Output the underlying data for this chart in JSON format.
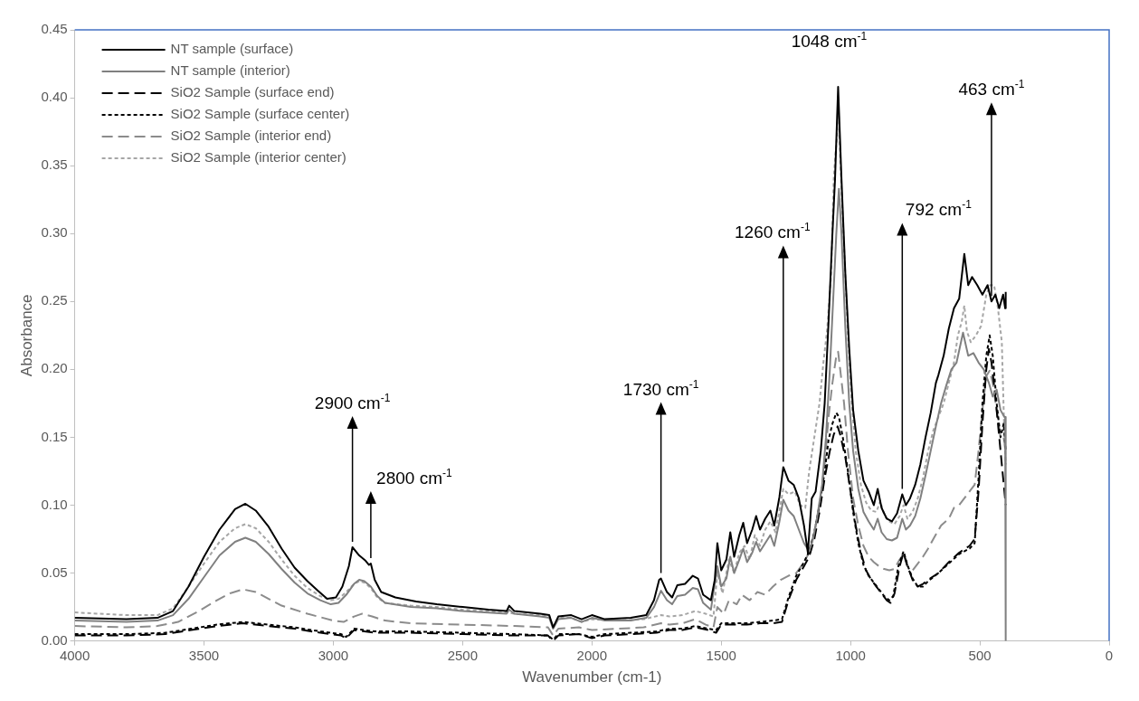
{
  "chart_data": {
    "type": "line",
    "xlabel": "Wavenumber (cm-1)",
    "ylabel": "Absorbance",
    "xlim": [
      4000,
      0
    ],
    "xticks": [
      4000,
      3500,
      3000,
      2500,
      2000,
      1500,
      1000,
      500,
      0
    ],
    "ylim": [
      0,
      0.45
    ],
    "yticks": [
      {
        "value": 0,
        "label": "0.00"
      },
      {
        "value": 0.05,
        "label": "0.05"
      },
      {
        "value": 0.1,
        "label": "0.10"
      },
      {
        "value": 0.15,
        "label": "0.15"
      },
      {
        "value": 0.2,
        "label": "0.20"
      },
      {
        "value": 0.25,
        "label": "0.25"
      },
      {
        "value": 0.3,
        "label": "0.30"
      },
      {
        "value": 0.35,
        "label": "0.35"
      },
      {
        "value": 0.4,
        "label": "0.40"
      },
      {
        "value": 0.45,
        "label": "0.45"
      }
    ],
    "grid": false,
    "legend": "top left",
    "marker": "none",
    "series": [
      {
        "name": "NT sample (surface)",
        "color": "#000000",
        "line_style": "solid",
        "x": [
          4000,
          3800,
          3680,
          3620,
          3560,
          3500,
          3440,
          3380,
          3340,
          3300,
          3250,
          3200,
          3150,
          3100,
          3060,
          3024,
          2990,
          2965,
          2940,
          2926,
          2900,
          2875,
          2862,
          2855,
          2840,
          2815,
          2760,
          2680,
          2600,
          2500,
          2400,
          2330,
          2320,
          2300,
          2200,
          2165,
          2150,
          2130,
          2080,
          2040,
          2000,
          1950,
          1850,
          1790,
          1760,
          1740,
          1733,
          1710,
          1690,
          1670,
          1640,
          1610,
          1590,
          1570,
          1540,
          1525,
          1515,
          1500,
          1480,
          1465,
          1450,
          1430,
          1415,
          1400,
          1380,
          1365,
          1350,
          1330,
          1310,
          1295,
          1275,
          1260,
          1240,
          1220,
          1200,
          1180,
          1165,
          1150,
          1135,
          1115,
          1100,
          1085,
          1070,
          1060,
          1048,
          1035,
          1020,
          1005,
          990,
          970,
          950,
          930,
          910,
          895,
          880,
          860,
          840,
          820,
          800,
          786,
          770,
          750,
          730,
          710,
          690,
          670,
          660,
          640,
          620,
          600,
          580,
          560,
          545,
          530,
          510,
          490,
          470,
          455,
          440,
          425,
          410,
          402,
          400
        ],
        "values": [
          0.017,
          0.016,
          0.017,
          0.022,
          0.04,
          0.062,
          0.082,
          0.097,
          0.101,
          0.096,
          0.084,
          0.068,
          0.054,
          0.044,
          0.037,
          0.031,
          0.032,
          0.04,
          0.055,
          0.069,
          0.063,
          0.059,
          0.056,
          0.057,
          0.045,
          0.036,
          0.032,
          0.029,
          0.027,
          0.025,
          0.023,
          0.022,
          0.026,
          0.022,
          0.02,
          0.019,
          0.01,
          0.018,
          0.019,
          0.016,
          0.019,
          0.016,
          0.017,
          0.019,
          0.03,
          0.045,
          0.046,
          0.036,
          0.032,
          0.041,
          0.042,
          0.048,
          0.046,
          0.034,
          0.03,
          0.045,
          0.072,
          0.052,
          0.06,
          0.08,
          0.062,
          0.078,
          0.087,
          0.072,
          0.082,
          0.092,
          0.082,
          0.09,
          0.096,
          0.085,
          0.106,
          0.128,
          0.118,
          0.115,
          0.105,
          0.085,
          0.065,
          0.105,
          0.11,
          0.14,
          0.175,
          0.235,
          0.3,
          0.34,
          0.408,
          0.34,
          0.27,
          0.215,
          0.17,
          0.14,
          0.118,
          0.11,
          0.1,
          0.112,
          0.098,
          0.09,
          0.088,
          0.094,
          0.108,
          0.1,
          0.105,
          0.115,
          0.13,
          0.15,
          0.168,
          0.19,
          0.196,
          0.21,
          0.23,
          0.245,
          0.252,
          0.285,
          0.262,
          0.268,
          0.262,
          0.255,
          0.262,
          0.25,
          0.255,
          0.245,
          0.255,
          0.245,
          0.257
        ]
      },
      {
        "name": "NT sample (interior)",
        "color": "#808080",
        "line_style": "solid",
        "x": [
          4000,
          3800,
          3680,
          3620,
          3560,
          3500,
          3440,
          3380,
          3340,
          3300,
          3250,
          3200,
          3150,
          3100,
          3050,
          3010,
          2980,
          2950,
          2920,
          2900,
          2880,
          2855,
          2830,
          2800,
          2700,
          2600,
          2500,
          2330,
          2320,
          2300,
          2200,
          2165,
          2150,
          2130,
          2080,
          2040,
          2000,
          1950,
          1850,
          1790,
          1760,
          1733,
          1710,
          1690,
          1670,
          1640,
          1610,
          1590,
          1570,
          1540,
          1515,
          1500,
          1480,
          1465,
          1450,
          1430,
          1415,
          1400,
          1380,
          1365,
          1350,
          1330,
          1310,
          1295,
          1275,
          1260,
          1240,
          1220,
          1200,
          1180,
          1160,
          1145,
          1130,
          1110,
          1095,
          1080,
          1065,
          1055,
          1045,
          1035,
          1020,
          1005,
          990,
          970,
          950,
          930,
          910,
          895,
          880,
          860,
          840,
          820,
          800,
          786,
          770,
          750,
          730,
          710,
          690,
          670,
          650,
          630,
          610,
          590,
          565,
          545,
          525,
          505,
          485,
          465,
          450,
          435,
          420,
          405,
          402,
          400
        ],
        "values": [
          0.015,
          0.014,
          0.015,
          0.019,
          0.031,
          0.047,
          0.063,
          0.073,
          0.076,
          0.073,
          0.064,
          0.053,
          0.043,
          0.035,
          0.03,
          0.027,
          0.028,
          0.034,
          0.042,
          0.045,
          0.044,
          0.04,
          0.033,
          0.028,
          0.025,
          0.024,
          0.022,
          0.02,
          0.023,
          0.02,
          0.018,
          0.017,
          0.009,
          0.016,
          0.017,
          0.014,
          0.017,
          0.015,
          0.015,
          0.017,
          0.025,
          0.037,
          0.03,
          0.027,
          0.033,
          0.034,
          0.039,
          0.038,
          0.028,
          0.023,
          0.055,
          0.04,
          0.046,
          0.062,
          0.05,
          0.06,
          0.068,
          0.058,
          0.065,
          0.073,
          0.066,
          0.072,
          0.078,
          0.07,
          0.088,
          0.104,
          0.096,
          0.092,
          0.082,
          0.072,
          0.066,
          0.075,
          0.09,
          0.115,
          0.15,
          0.2,
          0.26,
          0.3,
          0.333,
          0.3,
          0.23,
          0.175,
          0.14,
          0.112,
          0.095,
          0.088,
          0.082,
          0.09,
          0.08,
          0.075,
          0.074,
          0.076,
          0.09,
          0.082,
          0.085,
          0.092,
          0.105,
          0.122,
          0.14,
          0.158,
          0.175,
          0.188,
          0.2,
          0.205,
          0.227,
          0.21,
          0.212,
          0.205,
          0.2,
          0.19,
          0.18,
          0.185,
          0.17,
          0.165,
          0.165,
          0
        ]
      },
      {
        "name": "SiO2 Sample (surface end)",
        "color": "#000000",
        "line_style": "dashed",
        "x": [
          4000,
          3800,
          3650,
          3550,
          3450,
          3350,
          3250,
          3150,
          3050,
          2970,
          2950,
          2920,
          2880,
          2840,
          2700,
          2500,
          2300,
          2170,
          2150,
          2130,
          2050,
          2000,
          1950,
          1850,
          1750,
          1700,
          1650,
          1600,
          1550,
          1520,
          1500,
          1450,
          1400,
          1350,
          1300,
          1265,
          1240,
          1210,
          1180,
          1160,
          1140,
          1120,
          1100,
          1080,
          1065,
          1050,
          1040,
          1020,
          1000,
          980,
          960,
          940,
          920,
          900,
          880,
          860,
          845,
          830,
          810,
          795,
          780,
          760,
          740,
          720,
          700,
          660,
          620,
          580,
          540,
          520,
          505,
          490,
          475,
          465,
          455,
          440,
          425,
          410,
          400
        ],
        "values": [
          0.004,
          0.004,
          0.005,
          0.008,
          0.011,
          0.013,
          0.011,
          0.009,
          0.006,
          0.004,
          0.002,
          0.008,
          0.007,
          0.006,
          0.006,
          0.005,
          0.004,
          0.004,
          0,
          0.004,
          0.005,
          0.002,
          0.004,
          0.005,
          0.006,
          0.008,
          0.008,
          0.01,
          0.008,
          0.006,
          0.012,
          0.012,
          0.012,
          0.013,
          0.013,
          0.014,
          0.03,
          0.045,
          0.055,
          0.062,
          0.075,
          0.095,
          0.12,
          0.14,
          0.152,
          0.158,
          0.152,
          0.135,
          0.11,
          0.085,
          0.065,
          0.052,
          0.045,
          0.04,
          0.035,
          0.03,
          0.028,
          0.035,
          0.055,
          0.065,
          0.055,
          0.045,
          0.04,
          0.042,
          0.045,
          0.05,
          0.058,
          0.065,
          0.07,
          0.075,
          0.11,
          0.16,
          0.2,
          0.215,
          0.205,
          0.18,
          0.15,
          0.12,
          0.1
        ]
      },
      {
        "name": "SiO2 Sample (surface center)",
        "color": "#000000",
        "line_style": "dotted",
        "x": [
          4000,
          3800,
          3650,
          3550,
          3450,
          3350,
          3250,
          3150,
          3050,
          2970,
          2950,
          2920,
          2880,
          2840,
          2700,
          2500,
          2300,
          2170,
          2150,
          2130,
          2050,
          2000,
          1950,
          1850,
          1750,
          1700,
          1650,
          1600,
          1550,
          1520,
          1500,
          1450,
          1400,
          1350,
          1300,
          1265,
          1240,
          1210,
          1180,
          1160,
          1140,
          1120,
          1100,
          1085,
          1070,
          1055,
          1045,
          1030,
          1010,
          990,
          970,
          950,
          930,
          910,
          890,
          870,
          850,
          835,
          815,
          795,
          780,
          760,
          740,
          720,
          700,
          660,
          620,
          580,
          540,
          520,
          505,
          490,
          475,
          462,
          450,
          435,
          420,
          408,
          400
        ],
        "values": [
          0.005,
          0.005,
          0.006,
          0.009,
          0.012,
          0.014,
          0.012,
          0.01,
          0.007,
          0.005,
          0.003,
          0.009,
          0.008,
          0.007,
          0.007,
          0.006,
          0.005,
          0.004,
          0.001,
          0.005,
          0.005,
          0.003,
          0.005,
          0.006,
          0.007,
          0.009,
          0.009,
          0.011,
          0.009,
          0.008,
          0.013,
          0.013,
          0.013,
          0.014,
          0.015,
          0.016,
          0.032,
          0.048,
          0.058,
          0.066,
          0.08,
          0.1,
          0.125,
          0.148,
          0.16,
          0.168,
          0.165,
          0.15,
          0.125,
          0.095,
          0.072,
          0.056,
          0.048,
          0.043,
          0.038,
          0.033,
          0.03,
          0.033,
          0.055,
          0.066,
          0.056,
          0.046,
          0.04,
          0.04,
          0.044,
          0.05,
          0.057,
          0.064,
          0.068,
          0.072,
          0.12,
          0.175,
          0.21,
          0.225,
          0.21,
          0.175,
          0.15,
          0.16,
          0.14
        ]
      },
      {
        "name": "SiO2 Sample (interior end)",
        "color": "#8c8c8c",
        "line_style": "dashed",
        "x": [
          4000,
          3800,
          3680,
          3600,
          3520,
          3450,
          3400,
          3350,
          3300,
          3250,
          3200,
          3100,
          3000,
          2960,
          2920,
          2890,
          2850,
          2800,
          2700,
          2500,
          2300,
          2170,
          2150,
          2130,
          2050,
          2000,
          1900,
          1800,
          1733,
          1700,
          1650,
          1600,
          1560,
          1530,
          1515,
          1490,
          1470,
          1440,
          1420,
          1390,
          1360,
          1330,
          1300,
          1270,
          1240,
          1210,
          1180,
          1160,
          1140,
          1120,
          1100,
          1085,
          1070,
          1055,
          1048,
          1040,
          1025,
          1010,
          990,
          970,
          950,
          930,
          910,
          890,
          870,
          850,
          830,
          810,
          795,
          780,
          760,
          740,
          720,
          700,
          680,
          650,
          620,
          600,
          580,
          560,
          540,
          520,
          505,
          490,
          475,
          462,
          450,
          435,
          420,
          408,
          400
        ],
        "values": [
          0.011,
          0.01,
          0.011,
          0.014,
          0.022,
          0.03,
          0.035,
          0.038,
          0.036,
          0.031,
          0.026,
          0.02,
          0.015,
          0.014,
          0.018,
          0.02,
          0.018,
          0.015,
          0.013,
          0.012,
          0.011,
          0.01,
          0.004,
          0.009,
          0.01,
          0.008,
          0.009,
          0.01,
          0.013,
          0.012,
          0.013,
          0.016,
          0.012,
          0.01,
          0.025,
          0.02,
          0.03,
          0.027,
          0.034,
          0.03,
          0.036,
          0.034,
          0.04,
          0.045,
          0.048,
          0.05,
          0.058,
          0.065,
          0.08,
          0.1,
          0.13,
          0.165,
          0.19,
          0.21,
          0.213,
          0.2,
          0.175,
          0.14,
          0.105,
          0.085,
          0.07,
          0.062,
          0.058,
          0.055,
          0.053,
          0.052,
          0.053,
          0.06,
          0.064,
          0.055,
          0.052,
          0.057,
          0.062,
          0.068,
          0.075,
          0.085,
          0.09,
          0.098,
          0.1,
          0.105,
          0.11,
          0.115,
          0.14,
          0.17,
          0.195,
          0.199,
          0.19,
          0.17,
          0.15,
          0.15,
          0.14
        ]
      },
      {
        "name": "SiO2 Sample (interior center)",
        "color": "#a6a6a6",
        "line_style": "dotted",
        "x": [
          4000,
          3800,
          3680,
          3620,
          3560,
          3500,
          3440,
          3380,
          3340,
          3300,
          3250,
          3200,
          3150,
          3100,
          3050,
          3010,
          2980,
          2950,
          2920,
          2900,
          2880,
          2855,
          2830,
          2800,
          2700,
          2600,
          2500,
          2330,
          2300,
          2200,
          2165,
          2150,
          2130,
          2080,
          2040,
          2000,
          1900,
          1800,
          1733,
          1700,
          1650,
          1600,
          1560,
          1530,
          1515,
          1495,
          1470,
          1450,
          1430,
          1410,
          1390,
          1370,
          1350,
          1330,
          1310,
          1290,
          1260,
          1240,
          1215,
          1195,
          1175,
          1160,
          1140,
          1120,
          1105,
          1090,
          1075,
          1065,
          1058,
          1052,
          1048,
          1040,
          1025,
          1010,
          995,
          980,
          960,
          940,
          920,
          900,
          885,
          870,
          850,
          830,
          810,
          795,
          780,
          760,
          740,
          720,
          700,
          680,
          660,
          640,
          620,
          600,
          585,
          570,
          560,
          550,
          535,
          515,
          495,
          475,
          460,
          445,
          430,
          415,
          405,
          400
        ],
        "values": [
          0.021,
          0.019,
          0.019,
          0.024,
          0.04,
          0.057,
          0.073,
          0.083,
          0.086,
          0.083,
          0.073,
          0.06,
          0.048,
          0.039,
          0.033,
          0.03,
          0.031,
          0.036,
          0.042,
          0.044,
          0.043,
          0.039,
          0.032,
          0.028,
          0.026,
          0.025,
          0.023,
          0.021,
          0.02,
          0.019,
          0.018,
          0.01,
          0.017,
          0.017,
          0.014,
          0.016,
          0.015,
          0.016,
          0.019,
          0.018,
          0.019,
          0.022,
          0.02,
          0.018,
          0.05,
          0.035,
          0.06,
          0.05,
          0.065,
          0.07,
          0.06,
          0.078,
          0.07,
          0.082,
          0.088,
          0.08,
          0.112,
          0.108,
          0.11,
          0.1,
          0.098,
          0.125,
          0.15,
          0.175,
          0.205,
          0.23,
          0.27,
          0.34,
          0.36,
          0.372,
          0.4,
          0.355,
          0.29,
          0.225,
          0.175,
          0.14,
          0.115,
          0.102,
          0.096,
          0.095,
          0.103,
          0.093,
          0.088,
          0.086,
          0.092,
          0.1,
          0.09,
          0.095,
          0.105,
          0.12,
          0.14,
          0.155,
          0.165,
          0.175,
          0.19,
          0.205,
          0.225,
          0.235,
          0.247,
          0.228,
          0.22,
          0.225,
          0.232,
          0.255,
          0.262,
          0.262,
          0.245,
          0.22,
          0.15,
          0.13
        ]
      }
    ],
    "annotations": [
      {
        "text": "2900 cm$^{-1}$",
        "x": 2926,
        "y": 0.069
      },
      {
        "text": "2800 cm$^{-1}$",
        "x": 2855,
        "y": 0.057
      },
      {
        "text": "1730 cm$^{-1}$",
        "x": 1733,
        "y": 0.046
      },
      {
        "text": "1260 cm$^{-1}$",
        "x": 1260,
        "y": 0.128
      },
      {
        "text": "1048 cm$^{-1}$",
        "x": 1048,
        "y": 0.408
      },
      {
        "text": "792 cm$^{-1}$",
        "x": 800,
        "y": 0.108
      },
      {
        "text": "463 cm$^{-1}$",
        "x": 455,
        "y": 0.25
      }
    ]
  }
}
